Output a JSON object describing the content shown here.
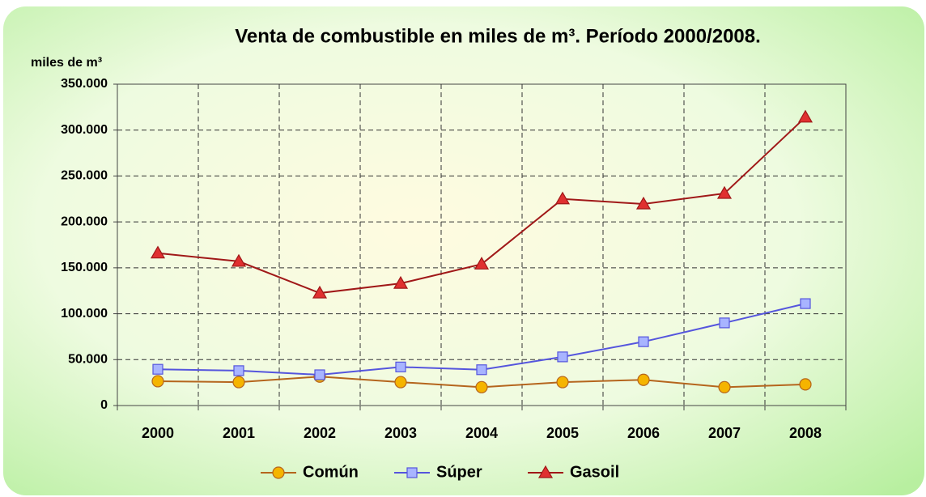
{
  "chart_data": {
    "type": "line",
    "title": "Venta de combustible en miles de m³. Período 2000/2008.",
    "y_label": "miles de m³",
    "categories": [
      "2000",
      "2001",
      "2002",
      "2003",
      "2004",
      "2005",
      "2006",
      "2007",
      "2008"
    ],
    "series": [
      {
        "name": "Común",
        "color": "#b5651d",
        "marker_color": "#f5b400",
        "marker": "circle",
        "values": [
          26500,
          25500,
          31500,
          25500,
          20000,
          25500,
          28000,
          20000,
          23000
        ]
      },
      {
        "name": "Súper",
        "color": "#5555dd",
        "marker_color": "#a8b4ff",
        "marker": "square",
        "values": [
          39500,
          38000,
          33500,
          42000,
          39000,
          53000,
          69500,
          90000,
          111000
        ]
      },
      {
        "name": "Gasoil",
        "color": "#a01818",
        "marker_color": "#e03030",
        "marker": "triangle",
        "values": [
          166000,
          157000,
          122500,
          133000,
          154000,
          225000,
          219500,
          231000,
          314000
        ]
      }
    ],
    "ylim": [
      0,
      350000
    ],
    "yticks": [
      0,
      {
        "value": 50000,
        "label": "50.000"
      },
      {
        "value": 100000,
        "label": "100.000"
      },
      {
        "value": 150000,
        "label": "150.000"
      },
      {
        "value": 200000,
        "label": "200.000"
      },
      {
        "value": 250000,
        "label": "250.000"
      },
      {
        "value": 300000,
        "label": "300.000"
      },
      {
        "value": 350000,
        "label": "350.000"
      }
    ],
    "grid": true,
    "legend": "bottom"
  }
}
